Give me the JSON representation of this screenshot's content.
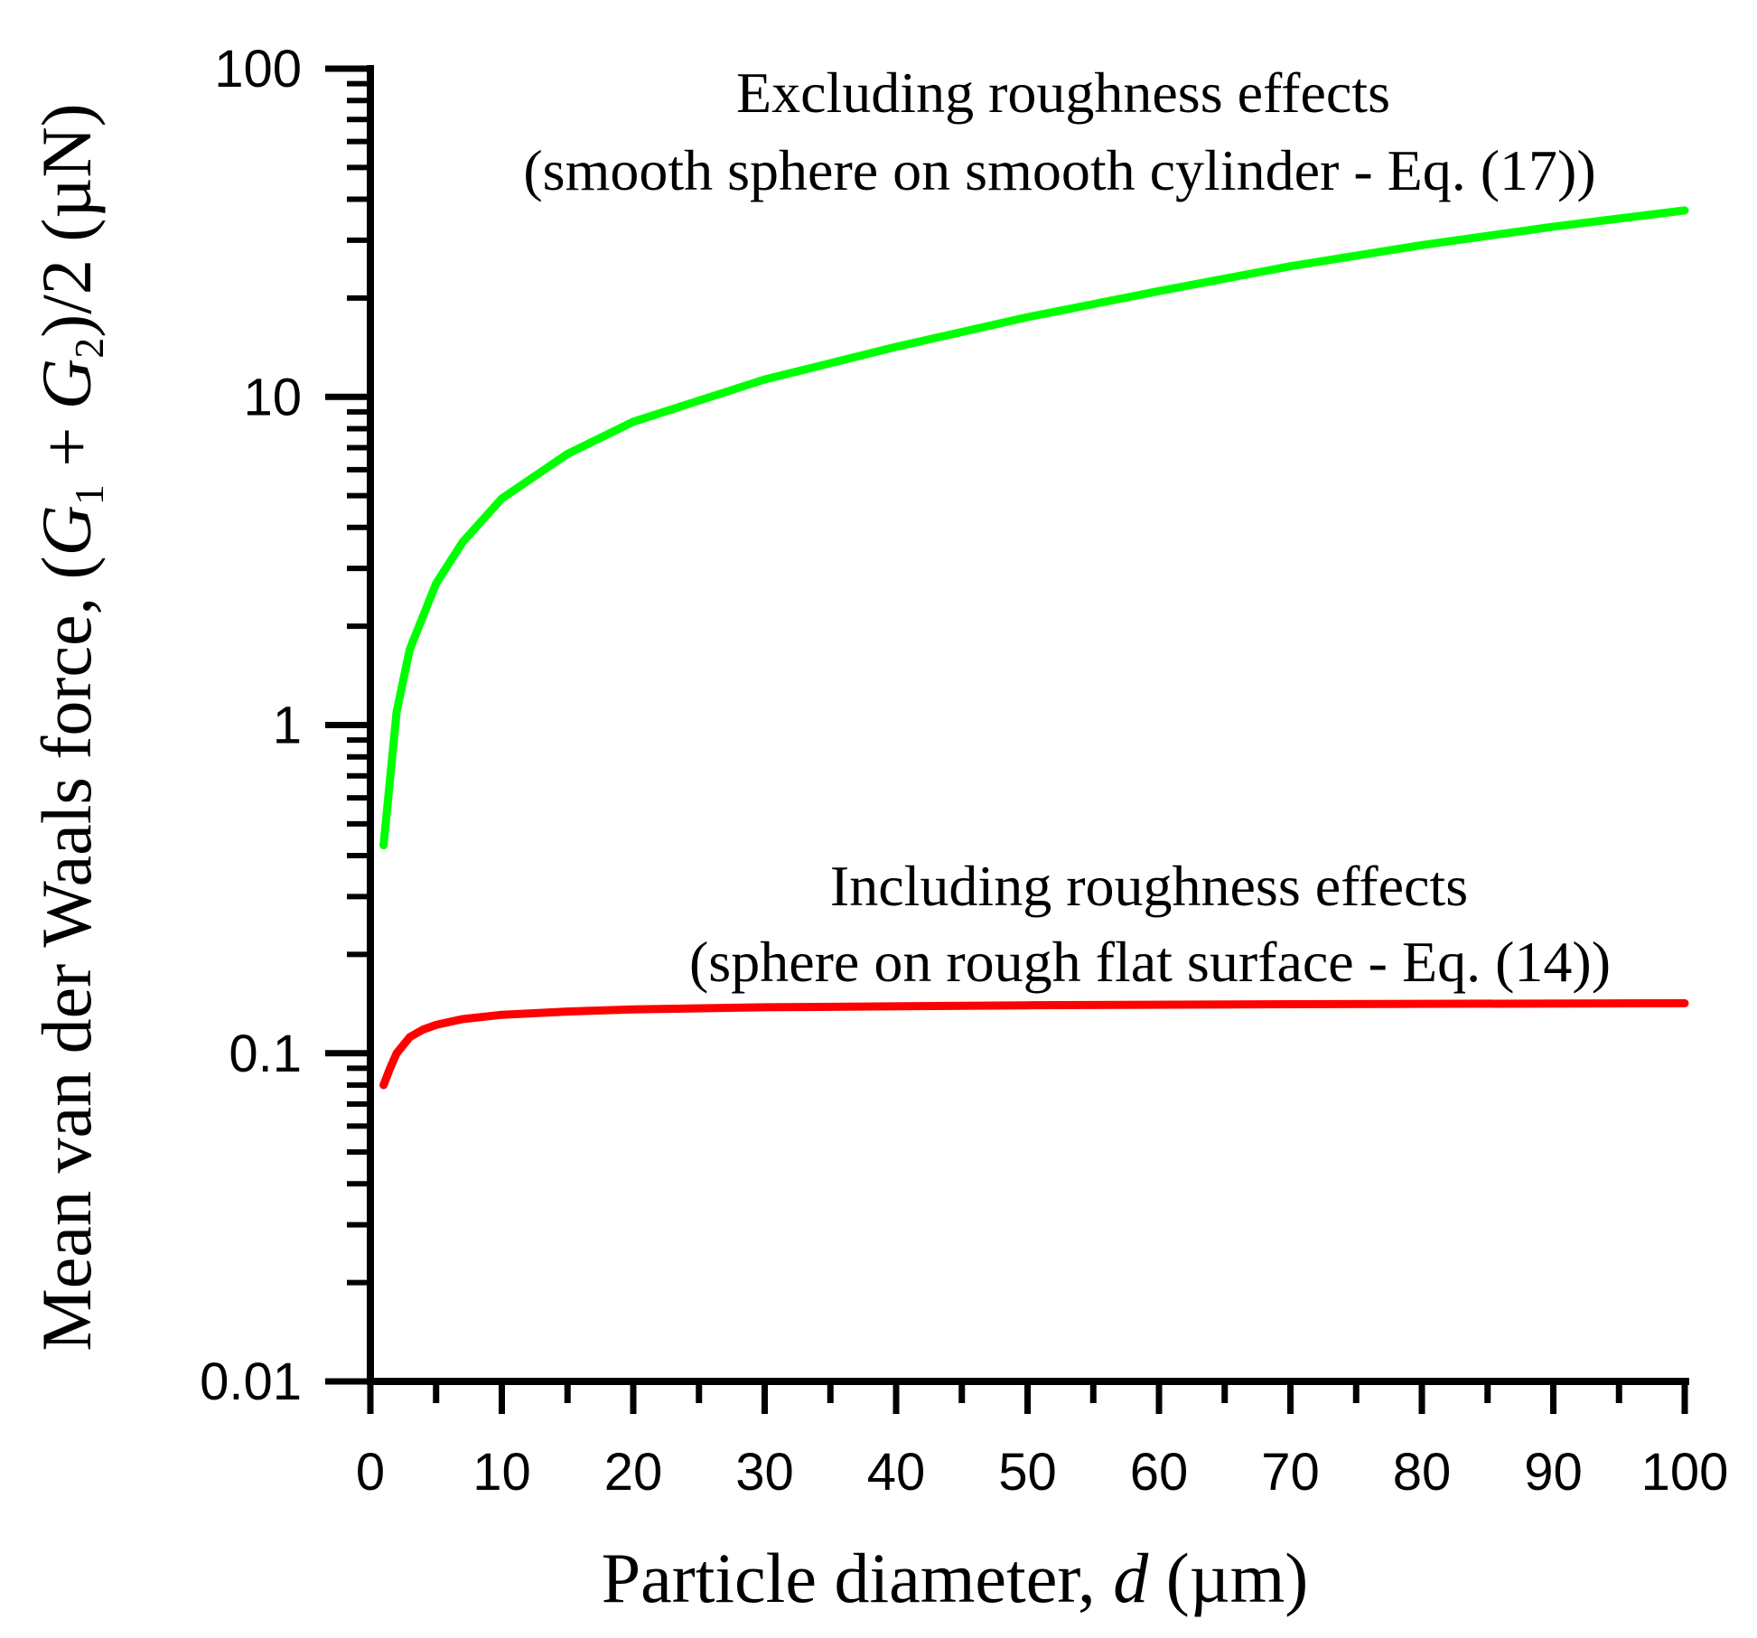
{
  "chart_data": {
    "type": "line",
    "xlabel": {
      "prefix": "Particle diameter, ",
      "var": "d",
      "suffix": " (µm)"
    },
    "ylabel": {
      "prefix": "Mean van der Waals force, (",
      "g": "G",
      "sub1": "1",
      "plus": " + ",
      "sub2": "2",
      "suffix": ")/2 (µN)"
    },
    "xlim": [
      0,
      100
    ],
    "ylim": [
      0.01,
      100
    ],
    "yscale": "log",
    "grid": false,
    "x_ticks": [
      0,
      10,
      20,
      30,
      40,
      50,
      60,
      70,
      80,
      90,
      100
    ],
    "x_tick_labels": [
      "0",
      "10",
      "20",
      "30",
      "40",
      "50",
      "60",
      "70",
      "80",
      "90",
      "100"
    ],
    "y_ticks": [
      0.01,
      0.1,
      1,
      10,
      100
    ],
    "y_tick_labels": [
      "0.01",
      "0.1",
      "1",
      "10",
      "100"
    ],
    "series": [
      {
        "color": "#00ff00",
        "x": [
          1,
          2,
          3,
          5,
          7,
          10,
          15,
          20,
          30,
          40,
          50,
          60,
          70,
          80,
          90,
          100
        ],
        "y": [
          0.43,
          1.1,
          1.7,
          2.7,
          3.6,
          4.9,
          6.7,
          8.4,
          11.3,
          14.2,
          17.5,
          21,
          25,
          29,
          33,
          37
        ]
      },
      {
        "color": "#ff0000",
        "x": [
          1,
          1.5,
          2,
          3,
          4,
          5,
          7,
          10,
          15,
          20,
          30,
          50,
          70,
          100
        ],
        "y": [
          0.08,
          0.09,
          0.1,
          0.112,
          0.118,
          0.122,
          0.127,
          0.131,
          0.134,
          0.136,
          0.138,
          0.14,
          0.141,
          0.142
        ]
      }
    ],
    "annotations": [
      {
        "line1": "Excluding roughness effects",
        "line2": "(smooth sphere on smooth cylinder - Eq. (17))"
      },
      {
        "line1": "Including roughness effects",
        "line2": "(sphere on rough flat surface - Eq. (14))"
      }
    ]
  }
}
